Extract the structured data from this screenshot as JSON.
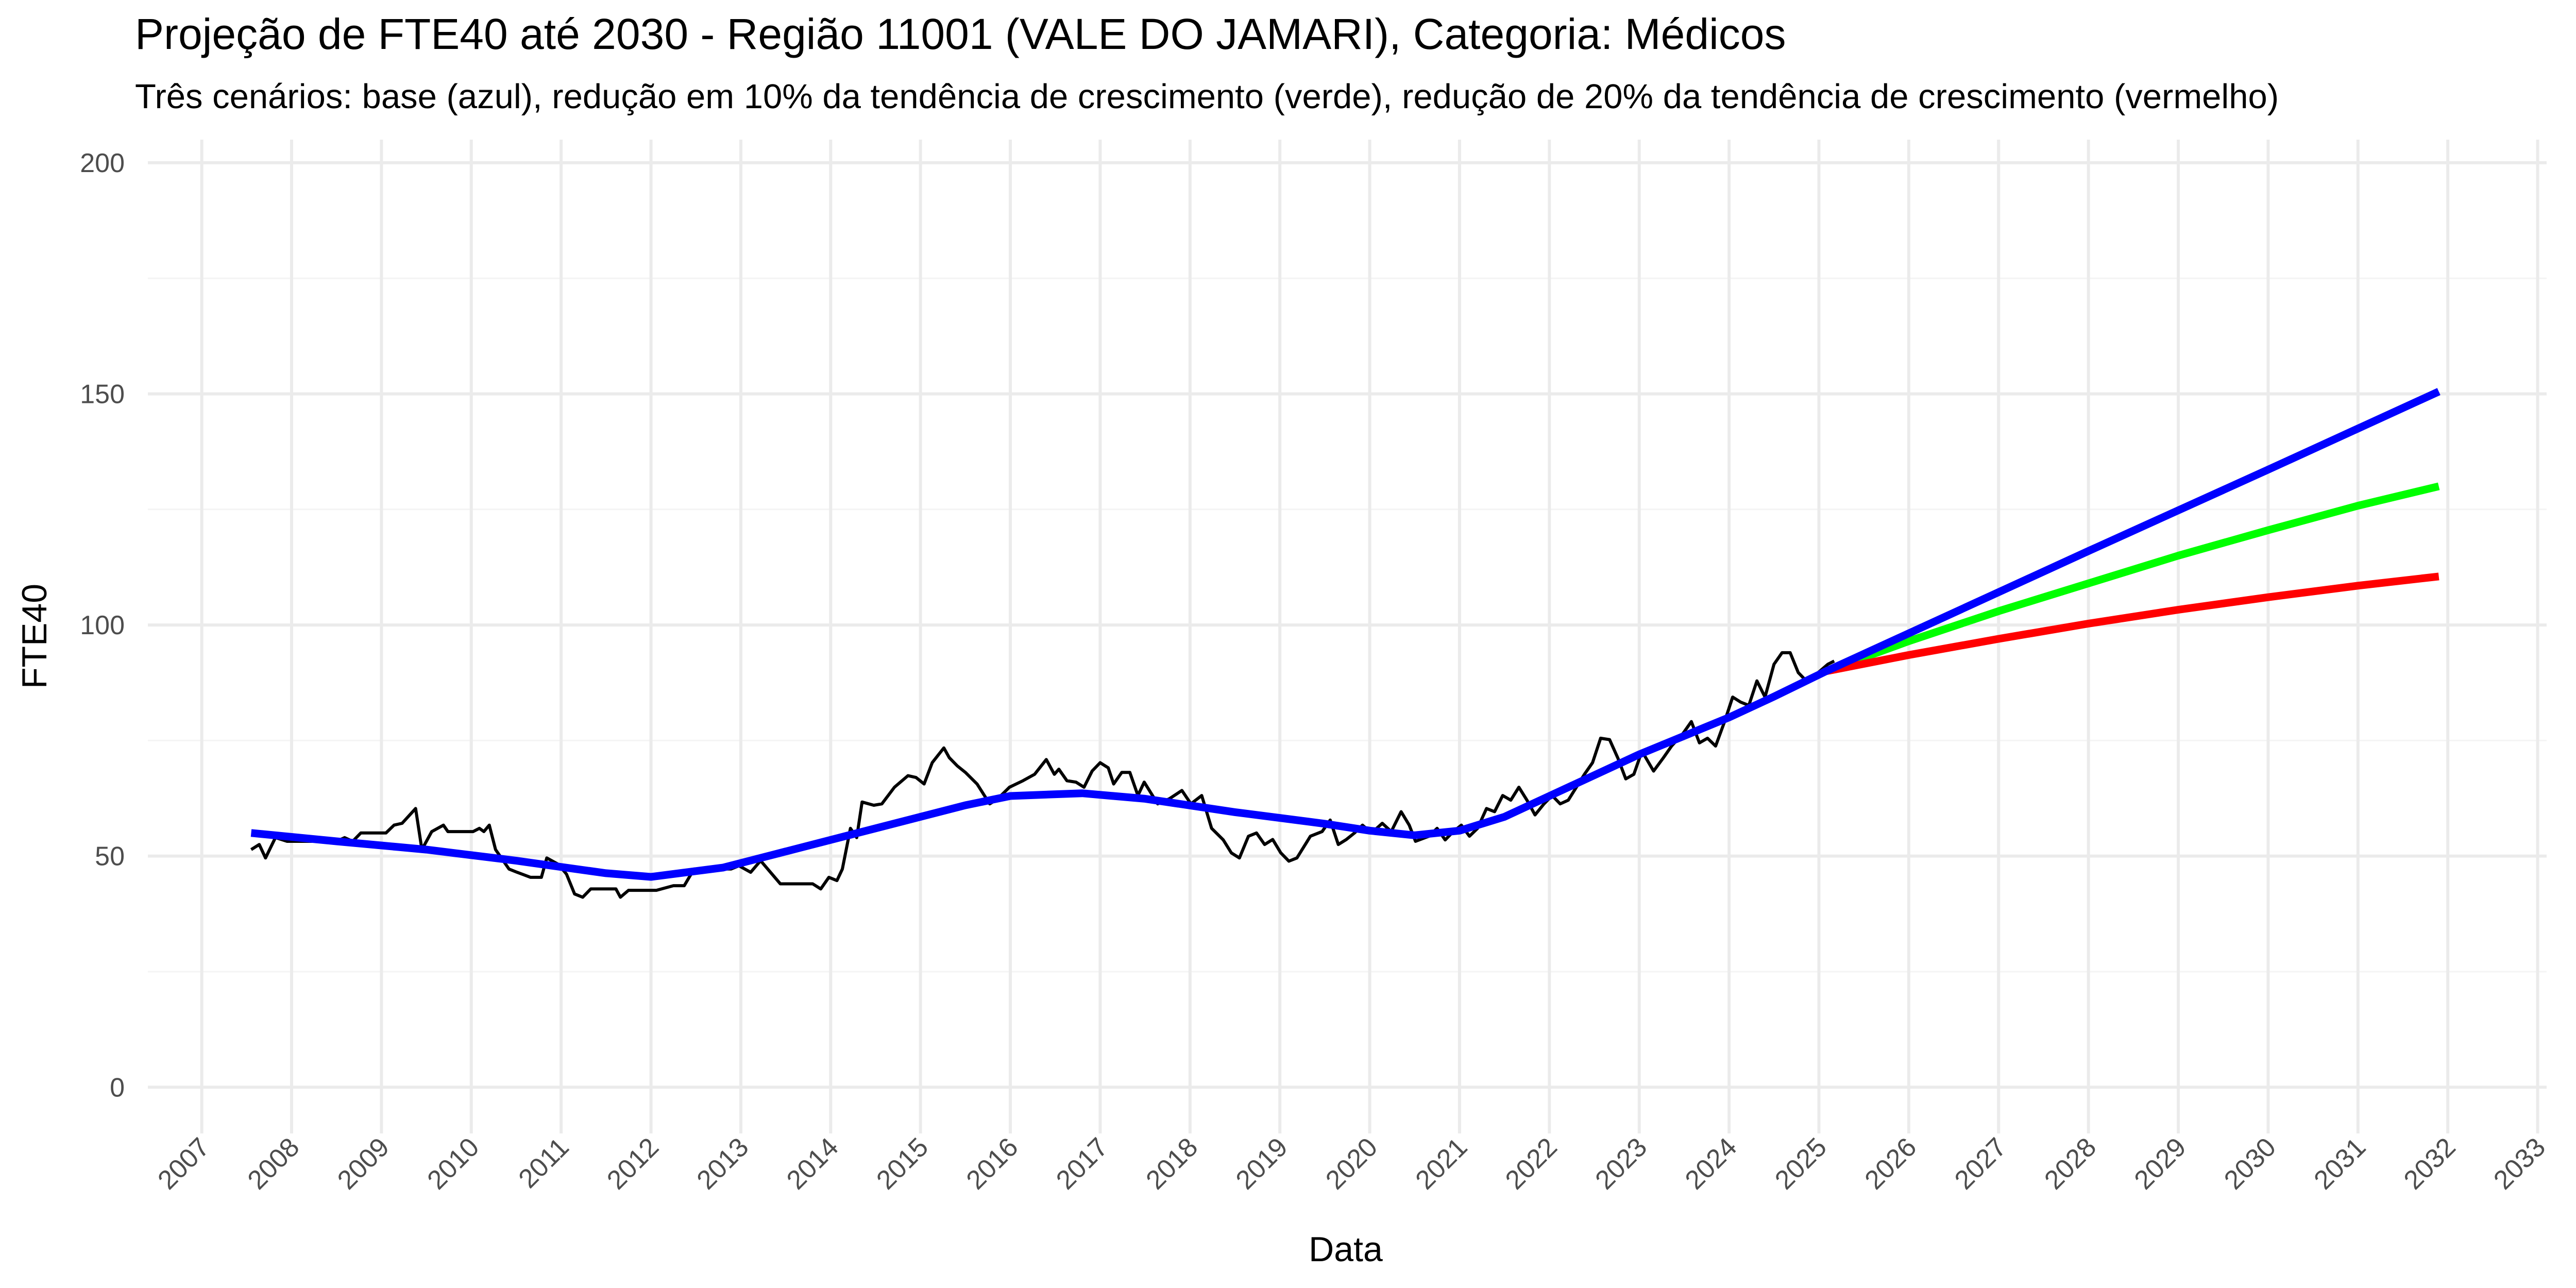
{
  "chart_data": {
    "type": "line",
    "title": "Projeção de FTE40 até 2030 - Região 11001 (VALE DO JAMARI), Categoria: Médicos",
    "subtitle": "Três cenários: base (azul), redução em 10% da tendência de crescimento (verde), redução de 20% da tendência de crescimento (vermelho)",
    "x_label": "Data",
    "y_label": "FTE40",
    "xlim": [
      2006.4,
      2033.1
    ],
    "xticks": [
      2007,
      2008,
      2009,
      2010,
      2011,
      2012,
      2013,
      2014,
      2015,
      2016,
      2017,
      2018,
      2019,
      2020,
      2021,
      2022,
      2023,
      2024,
      2025,
      2026,
      2027,
      2028,
      2029,
      2030,
      2031,
      2032,
      2033
    ],
    "ylim": [
      -10,
      205
    ],
    "yticks": [
      0,
      50,
      100,
      150,
      200
    ],
    "yminor": [
      25,
      75,
      125,
      175
    ],
    "grid": true,
    "series": [
      {
        "color": "#000000",
        "x": [
          2007.55,
          2007.64,
          2007.71,
          2007.82,
          2007.95,
          2008.5,
          2008.59,
          2008.68,
          2008.77,
          2009.05,
          2009.14,
          2009.23,
          2009.38,
          2009.45,
          2009.56,
          2009.69,
          2009.74,
          2010.02,
          2010.09,
          2010.14,
          2010.2,
          2010.27,
          2010.42,
          2010.51,
          2010.66,
          2010.78,
          2010.84,
          2010.97,
          2011.06,
          2011.15,
          2011.24,
          2011.33,
          2011.61,
          2011.66,
          2011.75,
          2012.06,
          2012.25,
          2012.37,
          2012.48,
          2012.89,
          2012.98,
          2013.11,
          2013.22,
          2013.44,
          2013.8,
          2013.89,
          2013.98,
          2014.07,
          2014.13,
          2014.22,
          2014.29,
          2014.35,
          2014.48,
          2014.57,
          2014.71,
          2014.86,
          2014.95,
          2015.04,
          2015.13,
          2015.26,
          2015.32,
          2015.41,
          2015.5,
          2015.63,
          2015.77,
          2015.86,
          2015.99,
          2016.14,
          2016.27,
          2016.4,
          2016.49,
          2016.54,
          2016.63,
          2016.73,
          2016.82,
          2016.91,
          2017.0,
          2017.09,
          2017.15,
          2017.24,
          2017.33,
          2017.42,
          2017.49,
          2017.64,
          2017.77,
          2017.91,
          2018.01,
          2018.13,
          2018.24,
          2018.37,
          2018.46,
          2018.55,
          2018.65,
          2018.74,
          2018.83,
          2018.92,
          2019.01,
          2019.1,
          2019.19,
          2019.34,
          2019.47,
          2019.56,
          2019.65,
          2019.74,
          2019.83,
          2019.92,
          2020.02,
          2020.14,
          2020.24,
          2020.35,
          2020.44,
          2020.51,
          2020.66,
          2020.75,
          2020.84,
          2020.93,
          2021.02,
          2021.11,
          2021.2,
          2021.3,
          2021.39,
          2021.48,
          2021.57,
          2021.66,
          2021.75,
          2021.84,
          2021.94,
          2022.03,
          2022.12,
          2022.21,
          2022.3,
          2022.39,
          2022.48,
          2022.57,
          2022.67,
          2022.76,
          2022.85,
          2022.94,
          2023.03,
          2023.16,
          2023.27,
          2023.36,
          2023.49,
          2023.58,
          2023.67,
          2023.76,
          2023.85,
          2023.95,
          2024.04,
          2024.13,
          2024.22,
          2024.31,
          2024.4,
          2024.5,
          2024.59,
          2024.68,
          2024.77,
          2024.86,
          2024.95,
          2025.1,
          2025.17
        ],
        "values": [
          51.4,
          52.5,
          49.6,
          54.0,
          53.2,
          53.2,
          54.0,
          53.2,
          55.0,
          55.0,
          56.7,
          57.1,
          60.3,
          51.4,
          55.3,
          56.7,
          55.3,
          55.3,
          56.0,
          55.3,
          56.7,
          51.4,
          47.2,
          46.5,
          45.4,
          45.4,
          49.6,
          48.2,
          46.1,
          41.8,
          41.1,
          42.9,
          42.9,
          41.1,
          42.6,
          42.6,
          43.6,
          43.6,
          47.2,
          47.2,
          47.9,
          46.5,
          49.0,
          44.0,
          44.0,
          42.9,
          45.4,
          44.7,
          47.2,
          56.0,
          54.0,
          61.7,
          61.0,
          61.3,
          64.9,
          67.4,
          67.0,
          65.6,
          70.2,
          73.4,
          71.3,
          69.5,
          68.1,
          65.6,
          61.3,
          62.4,
          64.9,
          66.3,
          67.7,
          70.9,
          67.7,
          68.8,
          66.3,
          66.0,
          64.9,
          68.4,
          70.2,
          69.1,
          65.6,
          68.1,
          68.1,
          63.1,
          66.0,
          61.3,
          62.4,
          64.2,
          61.3,
          63.1,
          56.0,
          53.5,
          50.7,
          49.6,
          54.3,
          55.0,
          52.5,
          53.6,
          50.7,
          48.9,
          49.6,
          54.3,
          55.3,
          57.8,
          52.5,
          53.6,
          55.0,
          56.7,
          55.0,
          57.1,
          55.3,
          59.6,
          56.7,
          53.2,
          54.3,
          56.0,
          53.5,
          55.3,
          56.7,
          54.3,
          56.0,
          60.3,
          59.6,
          63.1,
          62.1,
          64.9,
          62.1,
          58.9,
          61.3,
          63.1,
          61.3,
          62.1,
          64.9,
          67.7,
          70.2,
          75.5,
          75.2,
          71.3,
          66.7,
          67.7,
          72.7,
          68.4,
          71.3,
          73.8,
          76.6,
          79.1,
          74.5,
          75.5,
          73.8,
          79.1,
          84.4,
          83.3,
          82.6,
          87.9,
          84.4,
          91.5,
          94.0,
          94.0,
          89.7,
          87.9,
          89.0,
          91.5,
          92.2
        ]
      },
      {
        "color": "#00ff00",
        "x": [
          2025.08,
          2026,
          2027,
          2028,
          2029,
          2030,
          2031,
          2031.9
        ],
        "values": [
          90,
          96.5,
          103,
          109,
          115,
          120.5,
          125.8,
          130
        ]
      },
      {
        "color": "#ff0000",
        "x": [
          2025.08,
          2026,
          2027,
          2028,
          2029,
          2030,
          2031,
          2031.9
        ],
        "values": [
          90,
          93.5,
          97,
          100.3,
          103.3,
          106,
          108.5,
          110.5
        ]
      },
      {
        "color": "#0000ff",
        "x": [
          2007.55,
          2008.5,
          2009.5,
          2010.5,
          2011.5,
          2012.0,
          2012.8,
          2013.5,
          2014.5,
          2015.5,
          2016.0,
          2016.8,
          2017.5,
          2018.5,
          2019.5,
          2020.0,
          2020.5,
          2021.0,
          2021.5,
          2022.0,
          2022.5,
          2023.0,
          2023.5,
          2024.0,
          2024.5,
          2025.08,
          2028,
          2030,
          2031.9
        ],
        "values": [
          55,
          53.2,
          51.4,
          49,
          46.3,
          45.5,
          47.5,
          51,
          56,
          61,
          63,
          63.6,
          62.4,
          59.5,
          57,
          55.5,
          54.5,
          55.5,
          58.5,
          63,
          67.5,
          72,
          76,
          80,
          84.5,
          90,
          116,
          133.6,
          150.5
        ]
      }
    ]
  }
}
